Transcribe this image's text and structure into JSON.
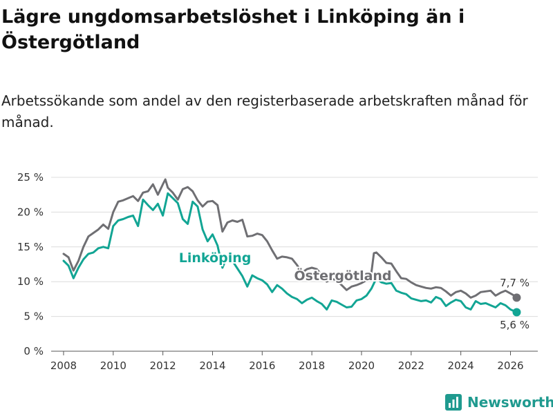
{
  "title": "Lägre ungdomsarbetslöshet i Linköping än i Östergötland",
  "subtitle": "Arbetssökande som andel av den registerbaserade arbetskraften månad för månad.",
  "brand": {
    "name": "Newsworthy",
    "icon": "newsworthy-logo-icon",
    "color": "#1f9a8f"
  },
  "chart_data": {
    "type": "line",
    "title": "Lägre ungdomsarbetslöshet i Linköping än i Östergötland",
    "xlabel": "",
    "ylabel": "",
    "xlim": [
      2007.5,
      2027.1
    ],
    "ylim": [
      0,
      25
    ],
    "grid": true,
    "yticks": [
      0,
      5,
      10,
      15,
      20,
      25
    ],
    "ytick_labels": [
      "0 %",
      "5 %",
      "10 %",
      "15 %",
      "20 %",
      "25 %"
    ],
    "xticks": [
      2008,
      2010,
      2012,
      2014,
      2016,
      2018,
      2020,
      2022,
      2024,
      2026
    ],
    "xtick_labels": [
      "2008",
      "2010",
      "2012",
      "2014",
      "2016",
      "2018",
      "2020",
      "2022",
      "2024",
      "2026"
    ],
    "series": [
      {
        "name": "Östergötland",
        "color": "#6f6f73",
        "end_label": "7,7 %",
        "points": [
          [
            2008.0,
            14.0
          ],
          [
            2008.2,
            13.5
          ],
          [
            2008.4,
            11.6
          ],
          [
            2008.6,
            13.0
          ],
          [
            2008.8,
            15.0
          ],
          [
            2009.0,
            16.5
          ],
          [
            2009.2,
            17.0
          ],
          [
            2009.4,
            17.5
          ],
          [
            2009.6,
            18.2
          ],
          [
            2009.8,
            17.6
          ],
          [
            2010.0,
            20.0
          ],
          [
            2010.2,
            21.5
          ],
          [
            2010.4,
            21.7
          ],
          [
            2010.6,
            22.0
          ],
          [
            2010.8,
            22.3
          ],
          [
            2011.0,
            21.6
          ],
          [
            2011.2,
            22.8
          ],
          [
            2011.4,
            23.0
          ],
          [
            2011.6,
            24.0
          ],
          [
            2011.8,
            22.5
          ],
          [
            2012.0,
            24.0
          ],
          [
            2012.1,
            24.7
          ],
          [
            2012.2,
            23.5
          ],
          [
            2012.4,
            22.8
          ],
          [
            2012.6,
            21.8
          ],
          [
            2012.8,
            23.3
          ],
          [
            2013.0,
            23.6
          ],
          [
            2013.2,
            23.0
          ],
          [
            2013.4,
            21.7
          ],
          [
            2013.6,
            20.8
          ],
          [
            2013.8,
            21.5
          ],
          [
            2014.0,
            21.6
          ],
          [
            2014.2,
            21.0
          ],
          [
            2014.4,
            17.2
          ],
          [
            2014.6,
            18.5
          ],
          [
            2014.8,
            18.8
          ],
          [
            2015.0,
            18.6
          ],
          [
            2015.2,
            18.9
          ],
          [
            2015.4,
            16.5
          ],
          [
            2015.6,
            16.6
          ],
          [
            2015.8,
            16.9
          ],
          [
            2016.0,
            16.7
          ],
          [
            2016.2,
            15.8
          ],
          [
            2016.4,
            14.5
          ],
          [
            2016.6,
            13.3
          ],
          [
            2016.8,
            13.6
          ],
          [
            2017.0,
            13.5
          ],
          [
            2017.2,
            13.3
          ],
          [
            2017.4,
            12.4
          ],
          [
            2017.6,
            11.3
          ],
          [
            2017.8,
            11.8
          ],
          [
            2018.0,
            12.0
          ],
          [
            2018.2,
            11.8
          ],
          [
            2018.4,
            11.0
          ],
          [
            2018.6,
            10.0
          ],
          [
            2018.8,
            10.4
          ],
          [
            2019.0,
            10.2
          ],
          [
            2019.2,
            9.5
          ],
          [
            2019.4,
            8.8
          ],
          [
            2019.6,
            9.3
          ],
          [
            2019.8,
            9.5
          ],
          [
            2020.0,
            9.8
          ],
          [
            2020.2,
            10.2
          ],
          [
            2020.4,
            11.3
          ],
          [
            2020.5,
            14.1
          ],
          [
            2020.6,
            14.2
          ],
          [
            2020.8,
            13.5
          ],
          [
            2021.0,
            12.7
          ],
          [
            2021.2,
            12.6
          ],
          [
            2021.4,
            11.5
          ],
          [
            2021.6,
            10.5
          ],
          [
            2021.8,
            10.4
          ],
          [
            2022.0,
            9.9
          ],
          [
            2022.2,
            9.5
          ],
          [
            2022.4,
            9.3
          ],
          [
            2022.6,
            9.1
          ],
          [
            2022.8,
            9.0
          ],
          [
            2023.0,
            9.2
          ],
          [
            2023.2,
            9.1
          ],
          [
            2023.4,
            8.6
          ],
          [
            2023.6,
            8.0
          ],
          [
            2023.8,
            8.5
          ],
          [
            2024.0,
            8.7
          ],
          [
            2024.2,
            8.3
          ],
          [
            2024.4,
            7.7
          ],
          [
            2024.6,
            8.0
          ],
          [
            2024.8,
            8.5
          ],
          [
            2025.0,
            8.6
          ],
          [
            2025.2,
            8.7
          ],
          [
            2025.4,
            8.0
          ],
          [
            2025.6,
            8.4
          ],
          [
            2025.8,
            8.7
          ],
          [
            2026.0,
            8.3
          ],
          [
            2026.2,
            7.9
          ],
          [
            2026.25,
            7.7
          ]
        ]
      },
      {
        "name": "Linköping",
        "color": "#12a594",
        "end_label": "5,6 %",
        "points": [
          [
            2008.0,
            13.0
          ],
          [
            2008.2,
            12.3
          ],
          [
            2008.4,
            10.5
          ],
          [
            2008.6,
            12.0
          ],
          [
            2008.8,
            13.2
          ],
          [
            2009.0,
            14.0
          ],
          [
            2009.2,
            14.2
          ],
          [
            2009.4,
            14.8
          ],
          [
            2009.6,
            15.0
          ],
          [
            2009.8,
            14.8
          ],
          [
            2010.0,
            18.0
          ],
          [
            2010.2,
            18.8
          ],
          [
            2010.4,
            19.0
          ],
          [
            2010.6,
            19.3
          ],
          [
            2010.8,
            19.5
          ],
          [
            2011.0,
            18.0
          ],
          [
            2011.2,
            21.8
          ],
          [
            2011.4,
            21.0
          ],
          [
            2011.6,
            20.3
          ],
          [
            2011.8,
            21.2
          ],
          [
            2012.0,
            19.5
          ],
          [
            2012.2,
            22.7
          ],
          [
            2012.4,
            22.0
          ],
          [
            2012.6,
            21.3
          ],
          [
            2012.8,
            19.0
          ],
          [
            2013.0,
            18.3
          ],
          [
            2013.2,
            21.5
          ],
          [
            2013.4,
            20.8
          ],
          [
            2013.6,
            17.5
          ],
          [
            2013.8,
            15.8
          ],
          [
            2014.0,
            16.8
          ],
          [
            2014.2,
            15.2
          ],
          [
            2014.4,
            12.0
          ],
          [
            2014.6,
            13.7
          ],
          [
            2014.8,
            13.0
          ],
          [
            2015.0,
            11.9
          ],
          [
            2015.2,
            10.8
          ],
          [
            2015.4,
            9.3
          ],
          [
            2015.6,
            10.9
          ],
          [
            2015.8,
            10.5
          ],
          [
            2016.0,
            10.2
          ],
          [
            2016.2,
            9.6
          ],
          [
            2016.4,
            8.5
          ],
          [
            2016.6,
            9.5
          ],
          [
            2016.8,
            9.0
          ],
          [
            2017.0,
            8.3
          ],
          [
            2017.2,
            7.8
          ],
          [
            2017.4,
            7.5
          ],
          [
            2017.6,
            6.9
          ],
          [
            2017.8,
            7.4
          ],
          [
            2018.0,
            7.7
          ],
          [
            2018.2,
            7.2
          ],
          [
            2018.4,
            6.8
          ],
          [
            2018.6,
            6.0
          ],
          [
            2018.8,
            7.3
          ],
          [
            2019.0,
            7.1
          ],
          [
            2019.2,
            6.7
          ],
          [
            2019.4,
            6.3
          ],
          [
            2019.6,
            6.4
          ],
          [
            2019.8,
            7.3
          ],
          [
            2020.0,
            7.5
          ],
          [
            2020.2,
            8.0
          ],
          [
            2020.4,
            9.0
          ],
          [
            2020.6,
            10.5
          ],
          [
            2020.8,
            9.9
          ],
          [
            2021.0,
            9.7
          ],
          [
            2021.2,
            9.8
          ],
          [
            2021.4,
            8.7
          ],
          [
            2021.6,
            8.4
          ],
          [
            2021.8,
            8.2
          ],
          [
            2022.0,
            7.6
          ],
          [
            2022.2,
            7.4
          ],
          [
            2022.4,
            7.2
          ],
          [
            2022.6,
            7.3
          ],
          [
            2022.8,
            7.0
          ],
          [
            2023.0,
            7.8
          ],
          [
            2023.2,
            7.5
          ],
          [
            2023.4,
            6.5
          ],
          [
            2023.6,
            7.0
          ],
          [
            2023.8,
            7.4
          ],
          [
            2024.0,
            7.2
          ],
          [
            2024.2,
            6.3
          ],
          [
            2024.4,
            6.0
          ],
          [
            2024.6,
            7.2
          ],
          [
            2024.8,
            6.8
          ],
          [
            2025.0,
            6.9
          ],
          [
            2025.2,
            6.6
          ],
          [
            2025.4,
            6.3
          ],
          [
            2025.6,
            6.9
          ],
          [
            2025.8,
            6.6
          ],
          [
            2026.0,
            6.0
          ],
          [
            2026.25,
            5.6
          ]
        ]
      }
    ]
  }
}
